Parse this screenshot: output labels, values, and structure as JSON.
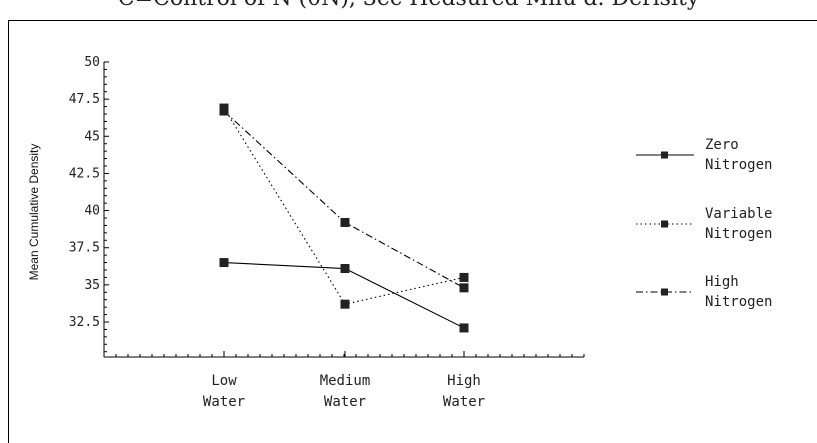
{
  "top_caption": "C=Control of N (0N), 3ec Hedsured Milu d. Derisity",
  "chart_data": {
    "type": "line",
    "title": "",
    "xlabel": "",
    "ylabel": "Mean Cumulative Density",
    "ylim": [
      30,
      50
    ],
    "yticks": [
      "50",
      "47.5",
      "45",
      "42.5",
      "40",
      "37.5",
      "35",
      "32.5"
    ],
    "ytick_values": [
      50,
      47.5,
      45,
      42.5,
      40,
      37.5,
      35,
      32.5
    ],
    "categories": [
      [
        "Low",
        "Water"
      ],
      [
        "Medium",
        "Water"
      ],
      [
        "High",
        "Water"
      ]
    ],
    "grid": false,
    "legend_position": "right",
    "series": [
      {
        "name": [
          "Zero",
          "Nitrogen"
        ],
        "dash": "solid",
        "values": [
          36.5,
          36.1,
          32.1
        ]
      },
      {
        "name": [
          "Variable",
          "Nitrogen"
        ],
        "dash": "dotted",
        "values": [
          46.9,
          33.7,
          35.5
        ]
      },
      {
        "name": [
          "High",
          "Nitrogen"
        ],
        "dash": "dashdot",
        "values": [
          46.7,
          39.2,
          34.8
        ]
      }
    ]
  }
}
